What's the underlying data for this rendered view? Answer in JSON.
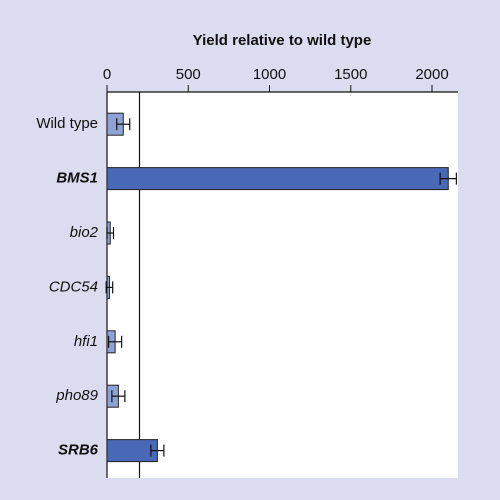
{
  "chart_data": {
    "type": "hbar-errorbar",
    "title": "Yield relative to wild type",
    "categories": [
      "Wild type",
      "BMS1",
      "bio2",
      "CDC54",
      "hfi1",
      "pho89",
      "SRB6"
    ],
    "category_styles": [
      "normal",
      "bold-italic",
      "italic",
      "italic",
      "italic",
      "italic",
      "bold-italic"
    ],
    "values": [
      100,
      2100,
      20,
      15,
      50,
      70,
      310
    ],
    "errors": [
      40,
      50,
      20,
      20,
      40,
      40,
      40
    ],
    "colors": [
      "#8fa2d8",
      "#4a68b8",
      "#8fa2d8",
      "#8fa2d8",
      "#8fa2d8",
      "#8fa2d8",
      "#4a68b8"
    ],
    "xlim": [
      0,
      2160
    ],
    "xticks": [
      0,
      500,
      1000,
      1500,
      2000
    ],
    "reference_x": 200
  }
}
